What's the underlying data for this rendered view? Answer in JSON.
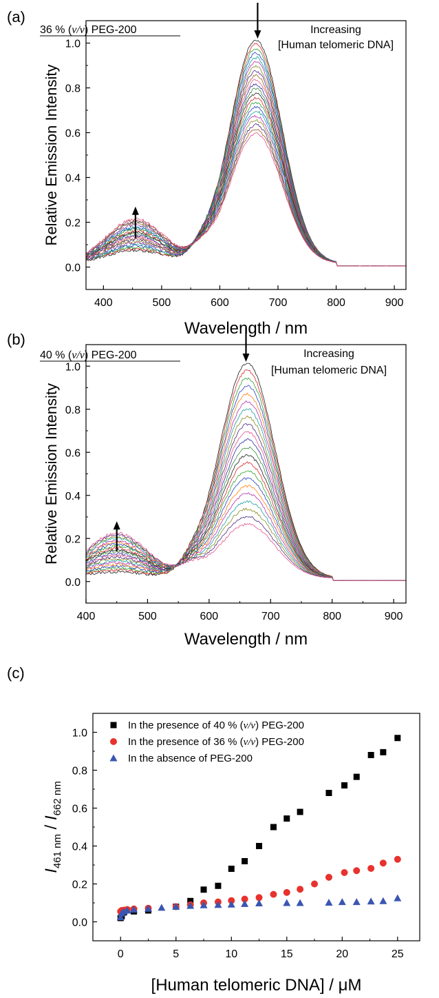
{
  "chart_data": [
    {
      "panel": "(a)",
      "type": "line",
      "condition_label": {
        "pre": "36 % (",
        "italic": "v/v",
        "post": ") PEG-200"
      },
      "annotation": {
        "line1": "Increasing",
        "line2": "[Human telomeric DNA]"
      },
      "xlabel": "Wavelength / nm",
      "ylabel": "Relative Emission Intensity",
      "xlim": [
        370,
        920
      ],
      "ylim": [
        -0.1,
        1.1
      ],
      "xticks": [
        400,
        500,
        600,
        700,
        800,
        900
      ],
      "yticks": [
        0.0,
        0.2,
        0.4,
        0.6,
        0.8,
        1.0
      ],
      "ytick_labels": [
        "0.0",
        "0.2",
        "0.4",
        "0.6",
        "0.8",
        "1.0"
      ],
      "arrows": [
        {
          "x": 455,
          "direction": "up",
          "y_from": 0.13,
          "y_to": 0.27
        },
        {
          "x": 665,
          "direction": "down",
          "y_from": 1.18,
          "y_to": 1.02
        }
      ],
      "spectra_model": {
        "curve_count": 22,
        "blue_peak_nm": 455,
        "blue_peak_range": [
          0.06,
          0.2
        ],
        "red_peak_nm": 662,
        "red_peak_range": [
          0.58,
          1.0
        ],
        "shoulder_nm": 568
      },
      "series_colors": [
        "#1a1a1a",
        "#d62728",
        "#2ca02c",
        "#1f3fbf",
        "#17a0a0",
        "#b030b0",
        "#8a8a20",
        "#4a2a80",
        "#a05a20",
        "#e0508a",
        "#2a2aa0",
        "#3a8a3a"
      ]
    },
    {
      "panel": "(b)",
      "type": "line",
      "condition_label": {
        "pre": "40 % (",
        "italic": "v/v",
        "post": ") PEG-200"
      },
      "annotation": {
        "line1": "Increasing",
        "line2": "[Human telomeric DNA]"
      },
      "xlabel": "Wavelength / nm",
      "ylabel": "Relative Emission Intensity",
      "xlim": [
        400,
        920
      ],
      "ylim": [
        -0.1,
        1.1
      ],
      "xticks": [
        400,
        500,
        600,
        700,
        800,
        900
      ],
      "yticks": [
        0.0,
        0.2,
        0.4,
        0.6,
        0.8,
        1.0
      ],
      "ytick_labels": [
        "0.0",
        "0.2",
        "0.4",
        "0.6",
        "0.8",
        "1.0"
      ],
      "arrows": [
        {
          "x": 450,
          "direction": "up",
          "y_from": 0.14,
          "y_to": 0.28
        },
        {
          "x": 660,
          "direction": "down",
          "y_from": 1.18,
          "y_to": 1.02
        }
      ],
      "spectra_model": {
        "curve_count": 22,
        "blue_peak_nm": 450,
        "blue_peak_range": [
          0.03,
          0.21
        ],
        "red_peak_nm": 662,
        "red_peak_range": [
          0.25,
          1.0
        ],
        "shoulder_nm": 570
      },
      "series_colors": [
        "#1a1a1a",
        "#d62728",
        "#2ca02c",
        "#1f3fbf",
        "#ff7f0e",
        "#b030b0",
        "#17a0a0",
        "#8a8a20",
        "#4a2a80",
        "#e0508a",
        "#2a2aa0",
        "#3a8a3a"
      ]
    },
    {
      "panel": "(c)",
      "type": "scatter",
      "xlabel": "[Human telomeric DNA] / μM",
      "ylabel": {
        "num": "I",
        "num_sub": "461 nm",
        "sep": " / ",
        "den": "I",
        "den_sub": "662 nm"
      },
      "xlim": [
        -2.5,
        27
      ],
      "ylim": [
        -0.1,
        1.1
      ],
      "xticks": [
        0,
        5,
        10,
        15,
        20,
        25
      ],
      "yticks": [
        0.0,
        0.2,
        0.4,
        0.6,
        0.8,
        1.0
      ],
      "ytick_labels": [
        "0.0",
        "0.2",
        "0.4",
        "0.6",
        "0.8",
        "1.0"
      ],
      "legend_position": "top-left",
      "series": [
        {
          "name": {
            "pre": "In the presence of 40 % (",
            "italic": "v/v",
            "post": ") PEG-200"
          },
          "marker": "square",
          "color": "#000000",
          "x": [
            0,
            0.1,
            0.3,
            0.6,
            1.2,
            2.5,
            5.0,
            6.3,
            7.5,
            8.8,
            10.0,
            11.2,
            12.5,
            13.8,
            15.0,
            16.2,
            18.8,
            20.2,
            21.3,
            22.6,
            23.7,
            25.0
          ],
          "y": [
            0.02,
            0.03,
            0.05,
            0.06,
            0.055,
            0.06,
            0.08,
            0.11,
            0.17,
            0.19,
            0.28,
            0.32,
            0.4,
            0.5,
            0.545,
            0.58,
            0.68,
            0.72,
            0.765,
            0.88,
            0.895,
            0.97
          ]
        },
        {
          "name": {
            "pre": "In the presence of 36 % (",
            "italic": "v/v",
            "post": ") PEG-200"
          },
          "marker": "circle",
          "color": "#e8322d",
          "x": [
            0,
            0.1,
            0.3,
            0.6,
            1.2,
            2.5,
            5.0,
            6.3,
            7.5,
            8.8,
            10.0,
            11.2,
            12.5,
            13.8,
            15.0,
            16.2,
            17.5,
            18.8,
            20.2,
            21.3,
            22.6,
            23.7,
            25.0
          ],
          "y": [
            0.055,
            0.06,
            0.062,
            0.065,
            0.068,
            0.072,
            0.08,
            0.09,
            0.1,
            0.105,
            0.112,
            0.12,
            0.128,
            0.145,
            0.155,
            0.172,
            0.2,
            0.235,
            0.26,
            0.27,
            0.282,
            0.31,
            0.33
          ]
        },
        {
          "name": {
            "pre": "In the absence of PEG-200",
            "italic": "",
            "post": ""
          },
          "marker": "triangle",
          "color": "#3a56b0",
          "x": [
            0,
            0.1,
            0.3,
            0.6,
            1.2,
            2.5,
            3.7,
            5.0,
            6.3,
            7.5,
            8.8,
            10.0,
            11.2,
            12.5,
            15.0,
            16.2,
            18.8,
            20.0,
            21.3,
            22.6,
            23.7,
            25.0
          ],
          "y": [
            0.025,
            0.045,
            0.055,
            0.06,
            0.065,
            0.07,
            0.075,
            0.08,
            0.085,
            0.088,
            0.09,
            0.092,
            0.095,
            0.098,
            0.1,
            0.1,
            0.102,
            0.105,
            0.105,
            0.108,
            0.11,
            0.125
          ]
        }
      ]
    }
  ]
}
